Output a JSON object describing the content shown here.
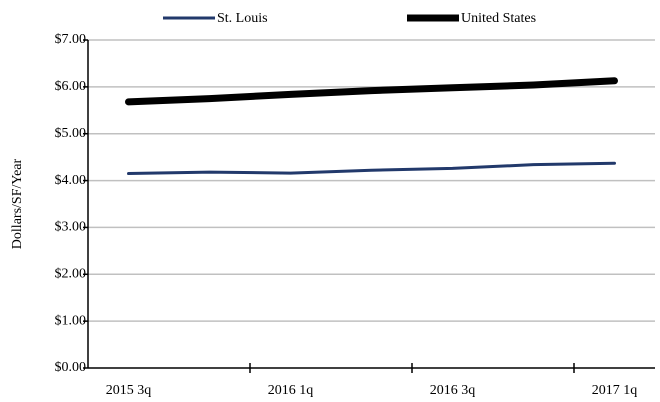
{
  "chart_data": {
    "type": "line",
    "y_label": "Dollars/SF/Year",
    "categories": [
      "2015 3q",
      null,
      "2016 1q",
      null,
      "2016 3q",
      null,
      "2017 1q"
    ],
    "series": [
      {
        "name": "St. Louis",
        "color": "#22396b",
        "width": 3,
        "values": [
          4.15,
          4.18,
          4.16,
          4.22,
          4.26,
          4.34,
          4.37
        ]
      },
      {
        "name": "United States",
        "color": "#000000",
        "width": 7,
        "values": [
          5.68,
          5.75,
          5.84,
          5.92,
          5.98,
          6.04,
          6.13
        ]
      }
    ],
    "ylim": [
      0,
      7
    ],
    "yticks": [
      {
        "value": 0,
        "label": "$0.00"
      },
      {
        "value": 1,
        "label": "$1.00"
      },
      {
        "value": 2,
        "label": "$2.00"
      },
      {
        "value": 3,
        "label": "$3.00"
      },
      {
        "value": 4,
        "label": "$4.00"
      },
      {
        "value": 5,
        "label": "$5.00"
      },
      {
        "value": 6,
        "label": "$6.00"
      },
      {
        "value": 7,
        "label": "$7.00"
      }
    ],
    "grid": true,
    "legend": "top"
  }
}
